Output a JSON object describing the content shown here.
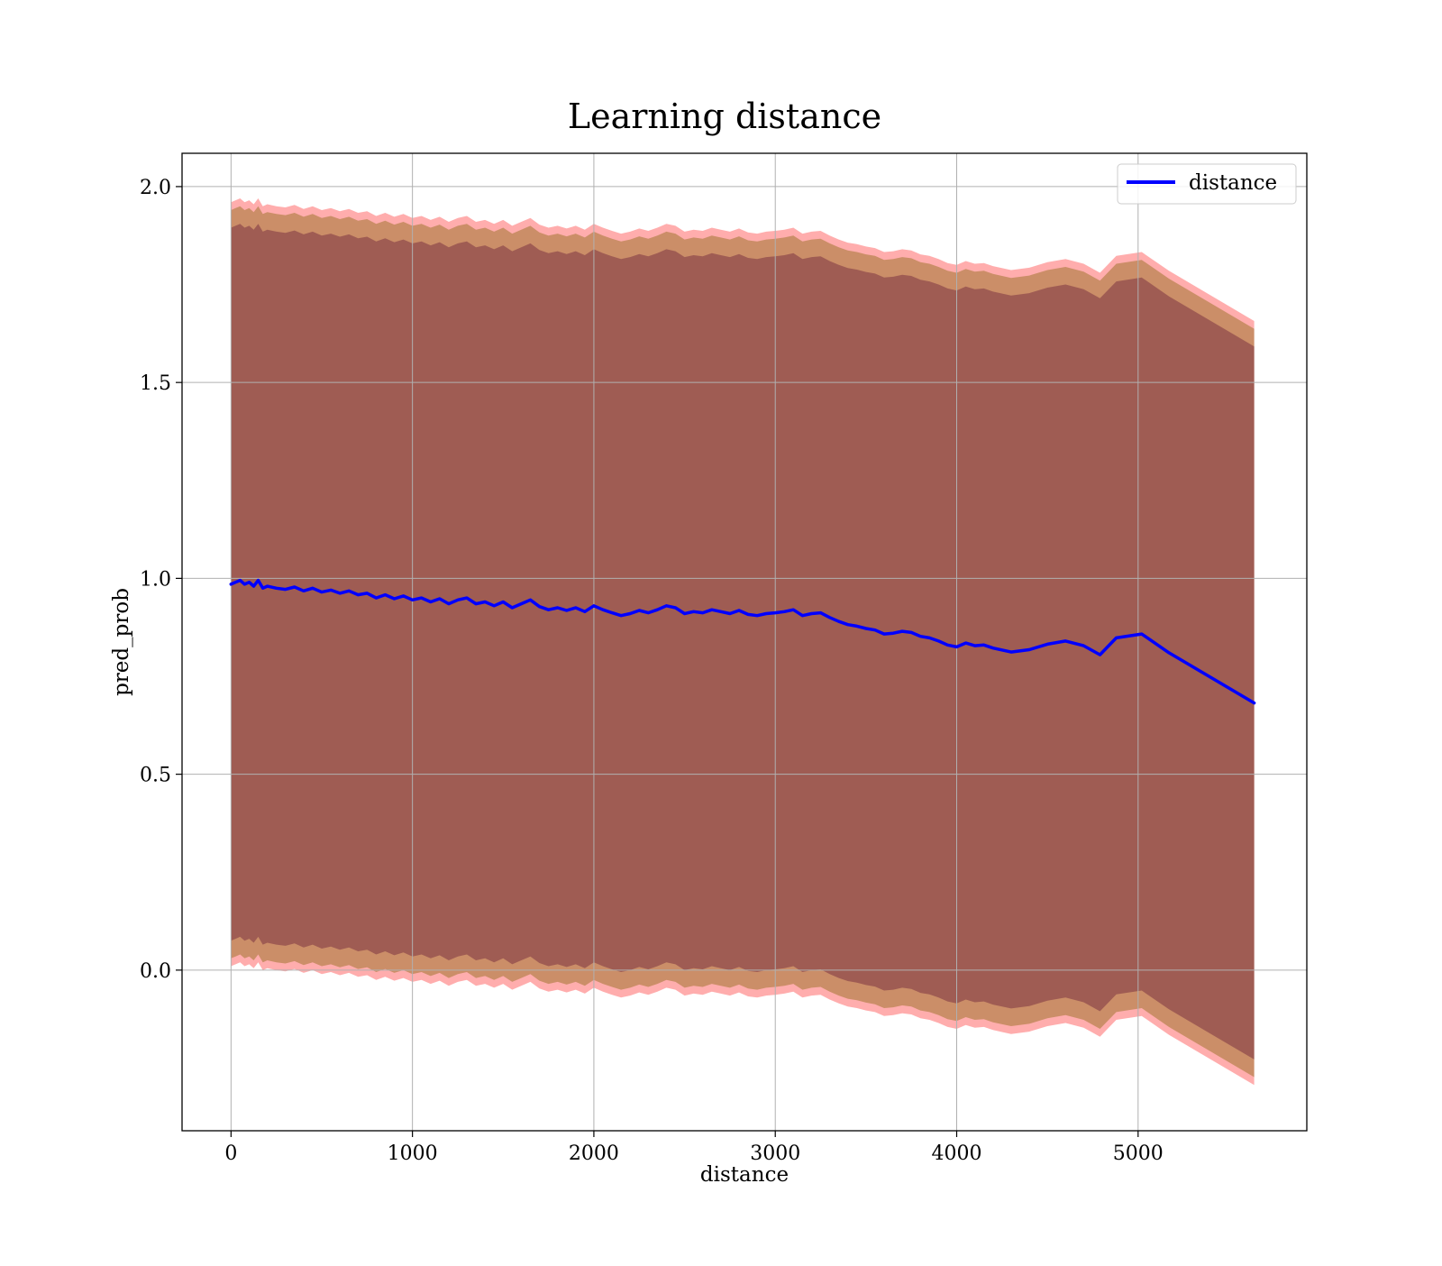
{
  "chart_data": {
    "type": "line",
    "title": "Learning distance",
    "xlabel": "distance",
    "ylabel": "pred_prob",
    "xlim": [
      -270,
      5930
    ],
    "ylim": [
      -0.41,
      2.085
    ],
    "xticks": [
      0,
      1000,
      2000,
      3000,
      4000,
      5000
    ],
    "yticks": [
      0.0,
      0.5,
      1.0,
      1.5,
      2.0
    ],
    "grid": true,
    "legend_position": "top-right",
    "legend": [
      "distance"
    ],
    "series": [
      {
        "name": "distance",
        "color": "#0000ff",
        "x": [
          0,
          25,
          50,
          75,
          100,
          125,
          150,
          175,
          200,
          250,
          300,
          350,
          400,
          450,
          500,
          550,
          600,
          650,
          700,
          750,
          800,
          850,
          900,
          950,
          1000,
          1050,
          1100,
          1150,
          1200,
          1250,
          1300,
          1350,
          1400,
          1450,
          1500,
          1550,
          1600,
          1650,
          1700,
          1750,
          1800,
          1850,
          1900,
          1950,
          2000,
          2050,
          2100,
          2150,
          2200,
          2250,
          2300,
          2350,
          2400,
          2450,
          2500,
          2550,
          2600,
          2650,
          2700,
          2750,
          2800,
          2850,
          2900,
          2950,
          3000,
          3050,
          3100,
          3150,
          3200,
          3250,
          3300,
          3350,
          3400,
          3450,
          3500,
          3550,
          3600,
          3650,
          3700,
          3750,
          3800,
          3850,
          3900,
          3950,
          4000,
          4050,
          4100,
          4150,
          4200,
          4300,
          4400,
          4500,
          4600,
          4700,
          4790,
          4880,
          5020,
          5170,
          5640
        ],
        "y": [
          0.985,
          0.99,
          0.995,
          0.985,
          0.99,
          0.98,
          0.995,
          0.975,
          0.98,
          0.975,
          0.972,
          0.978,
          0.968,
          0.975,
          0.965,
          0.97,
          0.962,
          0.968,
          0.958,
          0.962,
          0.95,
          0.958,
          0.948,
          0.955,
          0.945,
          0.95,
          0.94,
          0.948,
          0.935,
          0.945,
          0.95,
          0.935,
          0.94,
          0.93,
          0.94,
          0.925,
          0.935,
          0.945,
          0.928,
          0.92,
          0.925,
          0.918,
          0.925,
          0.915,
          0.93,
          0.92,
          0.912,
          0.905,
          0.91,
          0.918,
          0.912,
          0.92,
          0.93,
          0.925,
          0.91,
          0.915,
          0.912,
          0.92,
          0.915,
          0.91,
          0.918,
          0.908,
          0.905,
          0.91,
          0.912,
          0.915,
          0.92,
          0.905,
          0.91,
          0.912,
          0.9,
          0.89,
          0.882,
          0.878,
          0.872,
          0.868,
          0.858,
          0.86,
          0.865,
          0.862,
          0.852,
          0.848,
          0.84,
          0.83,
          0.825,
          0.835,
          0.828,
          0.83,
          0.822,
          0.812,
          0.818,
          0.832,
          0.84,
          0.828,
          0.805,
          0.848,
          0.858,
          0.81,
          0.682
        ]
      }
    ],
    "bands": [
      {
        "color": "#ff0000",
        "upper_offset": 0.975,
        "lower_offset": -0.975
      },
      {
        "color": "#8b6914",
        "upper_offset": 0.955,
        "lower_offset": -0.955
      },
      {
        "color": "#6a1f3a",
        "upper_offset": 0.91,
        "lower_offset": -0.91
      }
    ]
  }
}
